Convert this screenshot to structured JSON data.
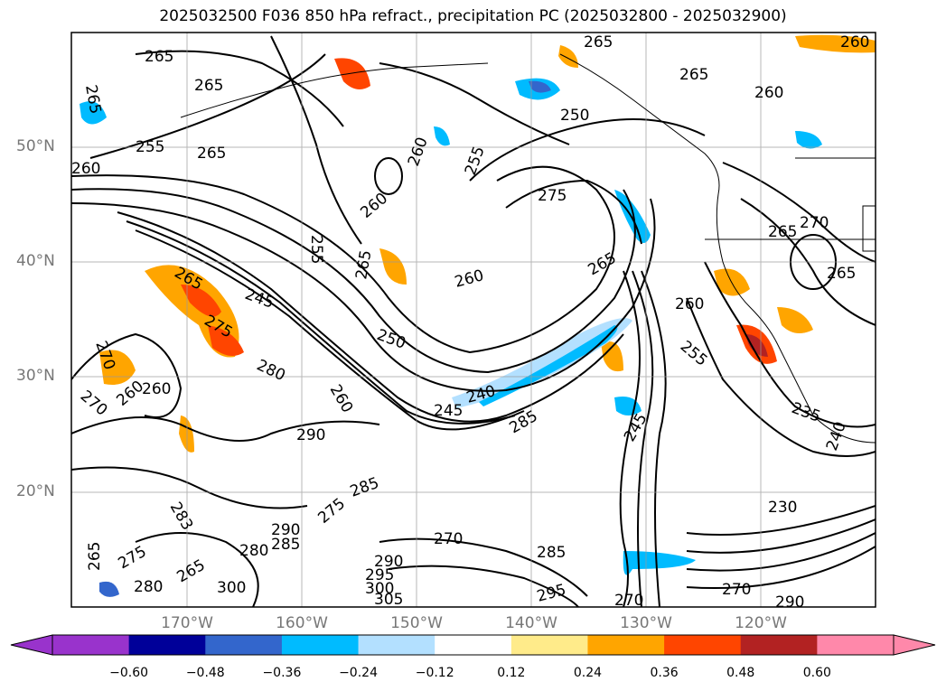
{
  "title": "2025032500 F036 850 hPa refract., precipitation PC (2025032800 - 2025032900)",
  "lat_ticks": [
    "50°N",
    "40°N",
    "30°N",
    "20°N"
  ],
  "lon_ticks": [
    "170°W",
    "160°W",
    "150°W",
    "140°W",
    "130°W",
    "120°W"
  ],
  "colorbar": {
    "colors": [
      "#9933cc",
      "#000099",
      "#3366cc",
      "#00bbff",
      "#b3e0ff",
      "#ffffff",
      "#ffeb8a",
      "#ffa500",
      "#ff4500",
      "#b22222",
      "#ff88aa"
    ],
    "labels": [
      "−0.60",
      "−0.48",
      "−0.36",
      "−0.24",
      "−0.12",
      "0.12",
      "0.24",
      "0.36",
      "0.48",
      "0.60"
    ]
  },
  "contour_labels": [
    "265",
    "265",
    "265",
    "265",
    "260",
    "255",
    "265",
    "260",
    "255",
    "250",
    "265",
    "260",
    "260",
    "275",
    "255",
    "260",
    "270",
    "265",
    "265",
    "265",
    "265",
    "260",
    "245",
    "265",
    "250",
    "275",
    "270",
    "280",
    "260",
    "270",
    "260",
    "260",
    "255",
    "260",
    "245",
    "240",
    "285",
    "245",
    "290",
    "285",
    "235",
    "275",
    "240",
    "230",
    "280",
    "270",
    "290",
    "285",
    "283",
    "285",
    "290",
    "295",
    "300",
    "305",
    "295",
    "270",
    "270",
    "265",
    "280",
    "265",
    "290",
    "300",
    "275"
  ],
  "map": {
    "extent": {
      "lon": [
        -180,
        -110
      ],
      "lat": [
        10,
        60
      ]
    },
    "gridlines": true,
    "coastlines": true
  }
}
